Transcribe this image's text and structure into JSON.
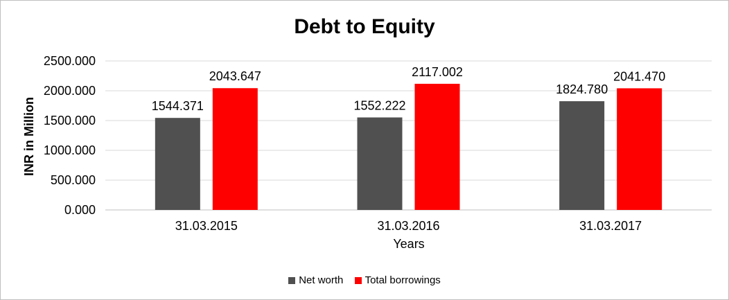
{
  "chart_data": {
    "type": "bar",
    "title": "Debt to Equity",
    "xlabel": "Years",
    "ylabel": "INR in Million",
    "categories": [
      "31.03.2015",
      "31.03.2016",
      "31.03.2017"
    ],
    "series": [
      {
        "name": "Net worth",
        "color": "#505050",
        "values": [
          1544.371,
          1552.222,
          1824.78
        ],
        "labels": [
          "1544.371",
          "1552.222",
          "1824.780"
        ]
      },
      {
        "name": "Total borrowings",
        "color": "#ff0000",
        "values": [
          2043.647,
          2117.002,
          2041.47
        ],
        "labels": [
          "2043.647",
          "2117.002",
          "2041.470"
        ]
      }
    ],
    "ylim": [
      0,
      2500
    ],
    "yticks": [
      "0.000",
      "500.000",
      "1000.000",
      "1500.000",
      "2000.000",
      "2500.000"
    ],
    "grid": true,
    "legend_position": "bottom"
  }
}
